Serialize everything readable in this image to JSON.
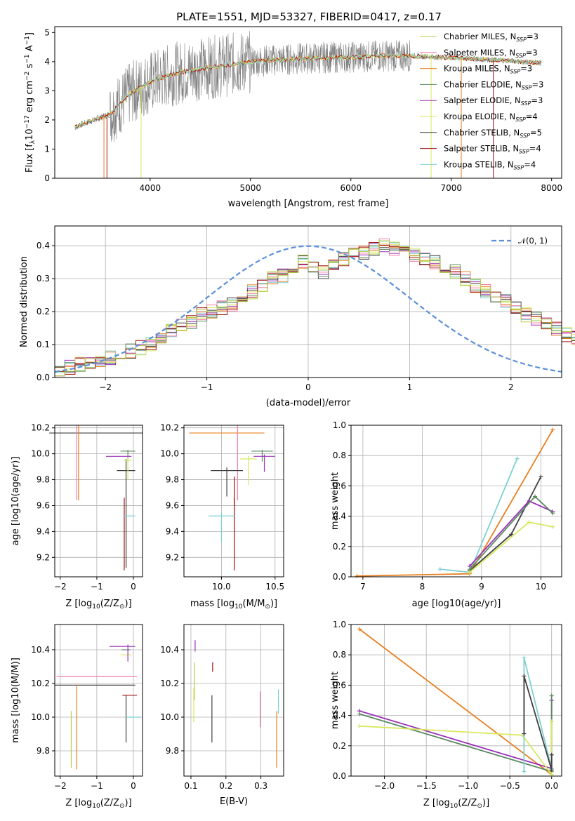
{
  "title": "PLATE=1551, MJD=53327, FIBERID=0417, z=0.17",
  "colors": [
    "#9acd32",
    "#ff69b4",
    "#ff7f0e",
    "#2e8b57",
    "#9932cc",
    "#d4e157",
    "#333333",
    "#8b0000",
    "#76d7c4"
  ],
  "models": [
    {
      "name": "Chabrier MILES, N",
      "sub": "SSP",
      "tail": "=3",
      "color": "#b0d04a"
    },
    {
      "name": "Salpeter MILES, N",
      "sub": "SSP",
      "tail": "=3",
      "color": "#f080a8"
    },
    {
      "name": "Kroupa MILES, N",
      "sub": "SSP",
      "tail": "=3",
      "color": "#e8801f"
    },
    {
      "name": "Chabrier ELODIE, N",
      "sub": "SSP",
      "tail": "=3",
      "color": "#5a8a60"
    },
    {
      "name": "Salpeter ELODIE, N",
      "sub": "SSP",
      "tail": "=3",
      "color": "#9b30b8"
    },
    {
      "name": "Kroupa ELODIE, N",
      "sub": "SSP",
      "tail": "=4",
      "color": "#d8e860"
    },
    {
      "name": "Chabrier STELIB, N",
      "sub": "SSP",
      "tail": "=5",
      "color": "#404040"
    },
    {
      "name": "Salpeter STELIB, N",
      "sub": "SSP",
      "tail": "=4",
      "color": "#a01010"
    },
    {
      "name": "Kroupa STELIB, N",
      "sub": "SSP",
      "tail": "=4",
      "color": "#80d0d0"
    }
  ],
  "chart_data": [
    {
      "type": "line",
      "title": "PLATE=1551, MJD=53327, FIBERID=0417, z=0.17",
      "xlabel": "wavelength [Angstrom, rest frame]",
      "ylabel_pre": "Flux [f",
      "ylabel_mid": "10",
      "ylabel_tail": " erg cm",
      "xlim": [
        3050,
        8100
      ],
      "ylim": [
        0,
        5.2
      ],
      "xticks": [
        4000,
        5000,
        6000,
        7000,
        8000
      ],
      "yticks": [
        0,
        1,
        2,
        3,
        4,
        5
      ],
      "spectrum_envelope": {
        "x": [
          3250,
          3400,
          3600,
          3800,
          4000,
          4200,
          4400,
          4600,
          4800,
          5000,
          5200,
          5500,
          5800,
          6000,
          6300,
          6600,
          6900,
          7200,
          7500,
          7900
        ],
        "y": [
          1.75,
          1.95,
          2.2,
          2.9,
          3.3,
          3.55,
          3.7,
          3.8,
          3.9,
          4.0,
          4.05,
          4.1,
          4.15,
          4.15,
          4.2,
          4.2,
          4.15,
          4.1,
          4.05,
          3.95
        ]
      }
    },
    {
      "type": "bar",
      "xlabel": "(data-model)/error",
      "ylabel": "Normed distribution",
      "xlim": [
        -2.5,
        2.5
      ],
      "ylim": [
        0,
        0.46
      ],
      "xticks": [
        -2,
        -1,
        0,
        1,
        2
      ],
      "yticks": [
        0.0,
        0.1,
        0.2,
        0.3,
        0.4
      ],
      "legend": "𝒩(0, 1)",
      "bins_start": -2.5,
      "bin_width": 0.1,
      "values": [
        0.02,
        0.03,
        0.04,
        0.045,
        0.05,
        0.06,
        0.07,
        0.08,
        0.09,
        0.1,
        0.12,
        0.14,
        0.16,
        0.17,
        0.19,
        0.2,
        0.21,
        0.22,
        0.24,
        0.26,
        0.28,
        0.3,
        0.31,
        0.33,
        0.35,
        0.34,
        0.32,
        0.34,
        0.36,
        0.38,
        0.38,
        0.39,
        0.4,
        0.39,
        0.38,
        0.37,
        0.36,
        0.35,
        0.34,
        0.32,
        0.3,
        0.28,
        0.26,
        0.25,
        0.23,
        0.21,
        0.19,
        0.18,
        0.16,
        0.15,
        0.13,
        0.12,
        0.1,
        0.09,
        0.08,
        0.07,
        0.06,
        0.05,
        0.04,
        0.035
      ]
    },
    {
      "type": "scatter",
      "xlabel_pre": "Z [log",
      "xlabel_tail": "(Z/Z",
      "ylabel": "age  [log10(age/yr)]",
      "xlim": [
        -2.15,
        0.25
      ],
      "ylim": [
        9.05,
        10.22
      ],
      "xticks": [
        -2,
        -1,
        0
      ],
      "yticks": [
        9.2,
        9.4,
        9.6,
        9.8,
        10.0,
        10.2
      ],
      "points": [
        {
          "x": -1.0,
          "y": 10.16,
          "xerr": 1.3,
          "yerr": 0,
          "c": 6
        },
        {
          "x": -1.5,
          "y": 10.16,
          "xerr": 0.0,
          "yerr": 0.52,
          "c": 2
        },
        {
          "x": -1.55,
          "y": 10.16,
          "xerr": 0,
          "yerr": 0.52,
          "c": 1
        },
        {
          "x": -0.15,
          "y": 10.02,
          "xerr": 0.2,
          "yerr": 0.08,
          "c": 3
        },
        {
          "x": -0.4,
          "y": 9.98,
          "xerr": 0.35,
          "yerr": 0,
          "c": 4
        },
        {
          "x": -0.2,
          "y": 9.87,
          "xerr": 0.25,
          "yerr": 0.75,
          "c": 6
        },
        {
          "x": -0.25,
          "y": 9.6,
          "xerr": 0,
          "yerr": 0.5,
          "c": 7
        },
        {
          "x": -0.1,
          "y": 9.52,
          "xerr": 0.15,
          "yerr": 0,
          "c": 8
        },
        {
          "x": -0.15,
          "y": 9.95,
          "xerr": 0.1,
          "yerr": 0.15,
          "c": 5
        }
      ]
    },
    {
      "type": "scatter",
      "xlabel_pre": "mass [log",
      "xlabel_tail": "(M/M",
      "ylabel": "",
      "xlim": [
        9.65,
        10.58
      ],
      "ylim": [
        9.05,
        10.22
      ],
      "xticks": [
        10.0,
        10.5
      ],
      "yticks": [
        9.2,
        9.4,
        9.6,
        9.8,
        10.0,
        10.2
      ],
      "points": [
        {
          "x": 10.05,
          "y": 10.16,
          "xerr": 0.35,
          "yerr": 0,
          "c": 2
        },
        {
          "x": 10.15,
          "y": 10.16,
          "xerr": 0.0,
          "yerr": 0.52,
          "c": 1
        },
        {
          "x": 10.38,
          "y": 10.02,
          "xerr": 0.1,
          "yerr": 0.08,
          "c": 3
        },
        {
          "x": 10.4,
          "y": 9.98,
          "xerr": 0.1,
          "yerr": 0.12,
          "c": 4
        },
        {
          "x": 10.05,
          "y": 9.87,
          "xerr": 0.15,
          "yerr": 0.2,
          "c": 6
        },
        {
          "x": 10.12,
          "y": 9.6,
          "xerr": 0,
          "yerr": 0.5,
          "c": 7
        },
        {
          "x": 10.0,
          "y": 9.52,
          "xerr": 0.12,
          "yerr": 0.2,
          "c": 8
        },
        {
          "x": 10.25,
          "y": 9.96,
          "xerr": 0.08,
          "yerr": 0.2,
          "c": 5
        },
        {
          "x": 10.12,
          "y": 9.8,
          "xerr": 0,
          "yerr": 0.2,
          "c": 7
        }
      ]
    },
    {
      "type": "line",
      "xlabel": "age  [log10(age/yr)]",
      "ylabel": "mass weight",
      "xlim": [
        6.8,
        10.35
      ],
      "ylim": [
        0,
        1.0
      ],
      "xticks": [
        7,
        8,
        9,
        10
      ],
      "yticks": [
        0.0,
        0.2,
        0.4,
        0.6,
        0.8,
        1.0
      ],
      "series": [
        {
          "c": 2,
          "x": [
            6.9,
            8.8,
            10.2
          ],
          "y": [
            0.005,
            0.02,
            0.97
          ]
        },
        {
          "c": 8,
          "x": [
            8.3,
            8.8,
            9.6
          ],
          "y": [
            0.05,
            0.03,
            0.78
          ]
        },
        {
          "c": 6,
          "x": [
            8.8,
            9.5,
            10.0
          ],
          "y": [
            0.04,
            0.28,
            0.66
          ]
        },
        {
          "c": 4,
          "x": [
            8.8,
            9.8,
            10.2
          ],
          "y": [
            0.07,
            0.5,
            0.43
          ]
        },
        {
          "c": 3,
          "x": [
            8.8,
            9.9,
            10.2
          ],
          "y": [
            0.05,
            0.53,
            0.42
          ]
        },
        {
          "c": 5,
          "x": [
            8.8,
            9.8,
            10.2
          ],
          "y": [
            0.03,
            0.36,
            0.33
          ]
        }
      ]
    },
    {
      "type": "scatter",
      "xlabel_pre": "Z [log",
      "xlabel_tail": "(Z/Z",
      "ylabel": "mass [log10(M/M)]",
      "xlim": [
        -2.15,
        0.25
      ],
      "ylim": [
        9.65,
        10.55
      ],
      "xticks": [
        -2,
        -1,
        0
      ],
      "yticks": [
        9.8,
        10.0,
        10.2,
        10.4
      ],
      "points": [
        {
          "x": -1.05,
          "y": 10.19,
          "xerr": 1.1,
          "yerr": 0,
          "c": 6
        },
        {
          "x": -1.55,
          "y": 10.14,
          "xerr": 0,
          "yerr": 0.45,
          "c": 2
        },
        {
          "x": -1.0,
          "y": 10.24,
          "xerr": 1.1,
          "yerr": 0,
          "c": 1
        },
        {
          "x": -1.7,
          "y": 10.0,
          "xerr": 0,
          "yerr": 0.3,
          "c": 0
        },
        {
          "x": -0.3,
          "y": 10.42,
          "xerr": 0.35,
          "yerr": 0,
          "c": 4
        },
        {
          "x": -0.2,
          "y": 10.4,
          "xerr": 0.12,
          "yerr": 0,
          "c": 3
        },
        {
          "x": -0.2,
          "y": 10.37,
          "xerr": 0.15,
          "yerr": 0,
          "c": 5
        },
        {
          "x": -0.1,
          "y": 10.13,
          "xerr": 0.2,
          "yerr": 0,
          "c": 7
        },
        {
          "x": -0.2,
          "y": 10.1,
          "xerr": 0,
          "yerr": 0.25,
          "c": 6
        },
        {
          "x": 0.0,
          "y": 10.0,
          "xerr": 0.2,
          "yerr": 0,
          "c": 8
        },
        {
          "x": -0.15,
          "y": 10.42,
          "xerr": 0,
          "yerr": 0.09,
          "c": 4
        }
      ]
    },
    {
      "type": "scatter",
      "xlabel": "E(B-V)",
      "ylabel": "",
      "xlim": [
        0.08,
        0.365
      ],
      "ylim": [
        9.65,
        10.55
      ],
      "xticks": [
        0.1,
        0.2,
        0.3
      ],
      "yticks": [
        9.8,
        10.0,
        10.2,
        10.4
      ],
      "points": [
        {
          "x": 0.11,
          "y": 10.3,
          "xerr": 0,
          "yerr": 0.2,
          "c": 0
        },
        {
          "x": 0.108,
          "y": 10.15,
          "xerr": 0,
          "yerr": 0.18,
          "c": 5
        },
        {
          "x": 0.112,
          "y": 10.45,
          "xerr": 0,
          "yerr": 0.06,
          "c": 4
        },
        {
          "x": 0.16,
          "y": 10.1,
          "xerr": 0,
          "yerr": 0.25,
          "c": 6
        },
        {
          "x": 0.162,
          "y": 10.32,
          "xerr": 0,
          "yerr": 0.05,
          "c": 7
        },
        {
          "x": 0.298,
          "y": 10.13,
          "xerr": 0,
          "yerr": 0.19,
          "c": 1
        },
        {
          "x": 0.345,
          "y": 10.0,
          "xerr": 0,
          "yerr": 0.3,
          "c": 2
        },
        {
          "x": 0.35,
          "y": 10.15,
          "xerr": 0,
          "yerr": 0.13,
          "c": 8
        }
      ]
    },
    {
      "type": "line",
      "xlabel_pre": "Z [log",
      "xlabel_tail": "(Z/Z",
      "ylabel": "mass weight",
      "xlim": [
        -2.4,
        0.12
      ],
      "ylim": [
        0,
        1.0
      ],
      "xticks": [
        -2.0,
        -1.5,
        -1.0,
        -0.5,
        0.0
      ],
      "yticks": [
        0.0,
        0.2,
        0.4,
        0.6,
        0.8,
        1.0
      ],
      "series": [
        {
          "c": 2,
          "x": [
            -2.3,
            0.0
          ],
          "y": [
            0.97,
            0.01
          ]
        },
        {
          "c": 4,
          "x": [
            -2.3,
            0.0,
            0.0
          ],
          "y": [
            0.43,
            0.05,
            0.5
          ]
        },
        {
          "c": 3,
          "x": [
            -2.3,
            0.0,
            0.0
          ],
          "y": [
            0.41,
            0.03,
            0.53
          ]
        },
        {
          "c": 5,
          "x": [
            -2.3,
            -0.35,
            0.0,
            0.0
          ],
          "y": [
            0.33,
            0.27,
            0.01,
            0.36
          ]
        },
        {
          "c": 8,
          "x": [
            -0.33,
            -0.33,
            0.0
          ],
          "y": [
            0.03,
            0.78,
            0.05
          ]
        },
        {
          "c": 6,
          "x": [
            -0.33,
            -0.33,
            0.0,
            0.0
          ],
          "y": [
            0.28,
            0.66,
            0.04,
            0.14
          ]
        }
      ]
    }
  ]
}
